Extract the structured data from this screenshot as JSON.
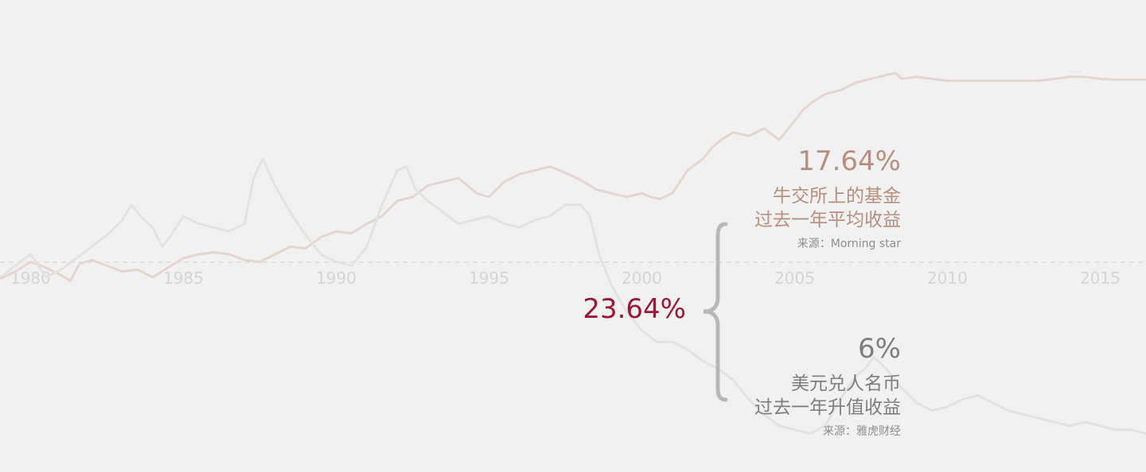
{
  "colors": {
    "background": "#f2f1f1",
    "fund_line": "#e6d5cf",
    "fx_line": "#e4e2e1",
    "axis_dashed": "#dcdad9",
    "tick_label": "#d6d4d3",
    "fund_text": "#b88f7c",
    "fx_text": "#7f7e7d",
    "total_text": "#9c1737",
    "brace": "#b9b8b7",
    "source_text": "#8f8d8c"
  },
  "chart_data": {
    "type": "line",
    "x_ticks": [
      "1980",
      "1985",
      "1990",
      "1995",
      "2000",
      "2005",
      "2010",
      "2015"
    ],
    "xlim": [
      1979,
      2016.5
    ],
    "ylim": [
      0,
      1
    ],
    "grid": false,
    "legend": "none",
    "series": [
      {
        "key": "fund",
        "x": [
          1979.0,
          1979.5,
          1980.0,
          1980.5,
          1981.0,
          1981.3,
          1981.6,
          1982.0,
          1982.5,
          1983.0,
          1983.5,
          1984.0,
          1984.3,
          1984.6,
          1985.0,
          1985.5,
          1986.0,
          1986.5,
          1987.0,
          1987.5,
          1988.0,
          1988.5,
          1989.0,
          1989.5,
          1990.0,
          1990.5,
          1991.0,
          1991.5,
          1992.0,
          1992.5,
          1993.0,
          1993.5,
          1994.0,
          1994.3,
          1994.6,
          1995.0,
          1995.5,
          1996.0,
          1996.5,
          1997.0,
          1997.3,
          1997.6,
          1998.0,
          1998.5,
          1999.0,
          1999.5,
          2000.0,
          2000.3,
          2000.6,
          2001.0,
          2001.5,
          2002.0,
          2002.3,
          2002.6,
          2003.0,
          2003.5,
          2004.0,
          2004.5,
          2005.0,
          2005.3,
          2005.6,
          2006.0,
          2006.5,
          2007.0,
          2007.5,
          2008.0,
          2008.3,
          2008.5,
          2009.0,
          2009.5,
          2010.0,
          2010.5,
          2011.0,
          2011.5,
          2012.0,
          2012.5,
          2013.0,
          2013.5,
          2014.0,
          2014.5,
          2015.0,
          2015.5,
          2016.0,
          2016.5
        ],
        "y": [
          0.435,
          0.455,
          0.48,
          0.465,
          0.445,
          0.43,
          0.475,
          0.485,
          0.47,
          0.455,
          0.46,
          0.44,
          0.455,
          0.47,
          0.49,
          0.5,
          0.505,
          0.5,
          0.485,
          0.48,
          0.5,
          0.52,
          0.515,
          0.545,
          0.56,
          0.555,
          0.58,
          0.6,
          0.64,
          0.65,
          0.68,
          0.69,
          0.7,
          0.68,
          0.66,
          0.65,
          0.69,
          0.71,
          0.72,
          0.73,
          0.72,
          0.71,
          0.695,
          0.67,
          0.66,
          0.65,
          0.66,
          0.65,
          0.645,
          0.66,
          0.72,
          0.75,
          0.78,
          0.8,
          0.82,
          0.81,
          0.83,
          0.8,
          0.85,
          0.88,
          0.9,
          0.92,
          0.93,
          0.95,
          0.96,
          0.97,
          0.975,
          0.96,
          0.965,
          0.96,
          0.955,
          0.955,
          0.955,
          0.955,
          0.955,
          0.955,
          0.955,
          0.96,
          0.965,
          0.965,
          0.96,
          0.958,
          0.958,
          0.958
        ]
      },
      {
        "key": "fx",
        "x": [
          1979.0,
          1979.5,
          1980.0,
          1980.5,
          1981.0,
          1981.5,
          1982.0,
          1982.5,
          1983.0,
          1983.3,
          1983.6,
          1984.0,
          1984.3,
          1984.6,
          1985.0,
          1985.5,
          1986.0,
          1986.5,
          1987.0,
          1987.3,
          1987.6,
          1988.0,
          1988.5,
          1989.0,
          1989.5,
          1990.0,
          1990.5,
          1991.0,
          1991.5,
          1992.0,
          1992.3,
          1992.6,
          1993.0,
          1993.5,
          1994.0,
          1994.5,
          1995.0,
          1995.5,
          1996.0,
          1996.5,
          1997.0,
          1997.5,
          1998.0,
          1998.3,
          1998.6,
          1999.0,
          1999.5,
          2000.0,
          2000.5,
          2001.0,
          2001.5,
          2002.0,
          2002.5,
          2003.0,
          2003.5,
          2004.0,
          2004.5,
          2005.0,
          2005.5,
          2006.0,
          2006.5,
          2007.0,
          2007.3,
          2007.6,
          2008.0,
          2008.5,
          2009.0,
          2009.5,
          2010.0,
          2010.5,
          2011.0,
          2011.5,
          2012.0,
          2012.5,
          2013.0,
          2013.5,
          2014.0,
          2014.5,
          2015.0,
          2015.5,
          2016.0,
          2016.5
        ],
        "y": [
          0.44,
          0.47,
          0.5,
          0.44,
          0.46,
          0.49,
          0.52,
          0.55,
          0.59,
          0.63,
          0.6,
          0.57,
          0.52,
          0.55,
          0.6,
          0.58,
          0.57,
          0.56,
          0.58,
          0.7,
          0.75,
          0.68,
          0.61,
          0.55,
          0.5,
          0.48,
          0.47,
          0.52,
          0.63,
          0.72,
          0.73,
          0.67,
          0.64,
          0.61,
          0.58,
          0.59,
          0.6,
          0.58,
          0.57,
          0.59,
          0.6,
          0.63,
          0.63,
          0.6,
          0.5,
          0.42,
          0.35,
          0.3,
          0.27,
          0.27,
          0.25,
          0.22,
          0.2,
          0.17,
          0.12,
          0.08,
          0.05,
          0.04,
          0.03,
          0.05,
          0.12,
          0.18,
          0.2,
          0.23,
          0.2,
          0.15,
          0.11,
          0.09,
          0.1,
          0.12,
          0.13,
          0.11,
          0.09,
          0.08,
          0.07,
          0.06,
          0.05,
          0.06,
          0.05,
          0.04,
          0.04,
          0.03
        ]
      }
    ]
  },
  "annotations": {
    "fund": {
      "value": "17.64%",
      "line1": "牛交所上的基金",
      "line2": "过去一年平均收益",
      "source": "来源：Morning star"
    },
    "fx": {
      "value": "6%",
      "line1": "美元兑人名币",
      "line2": "过去一年升值收益",
      "source": "来源：雅虎财经"
    },
    "total": {
      "value": "23.64%"
    }
  }
}
